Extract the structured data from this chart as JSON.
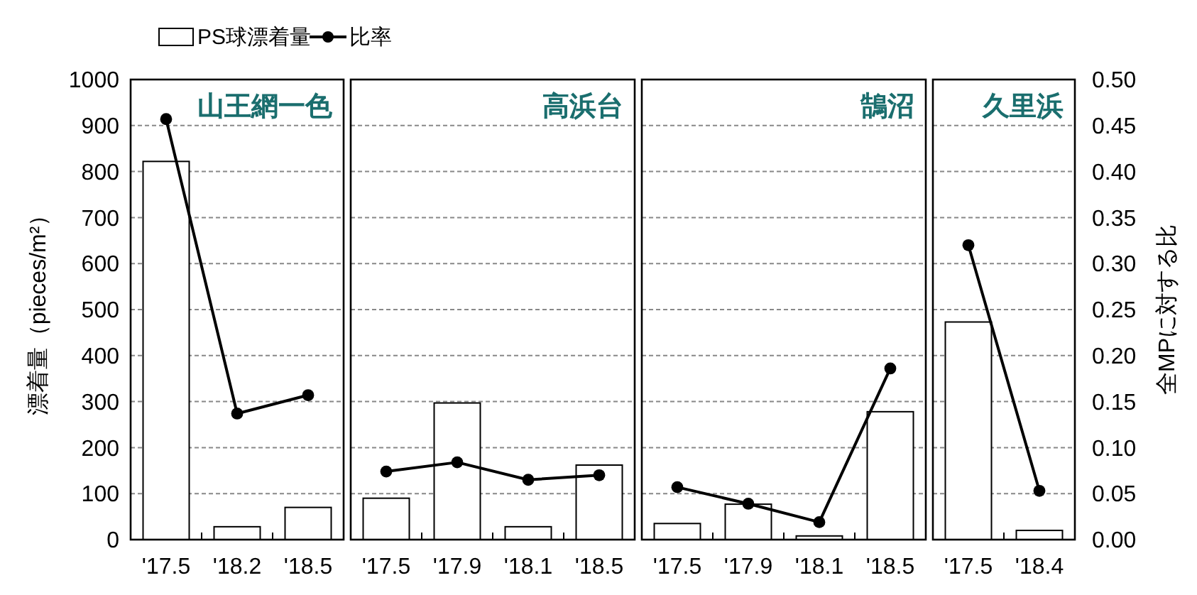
{
  "chart_data": {
    "type": "bar",
    "categories": [
      "'17.5",
      "'18.2",
      "'18.5",
      "'17.5",
      "'17.9",
      "'18.1",
      "'18.5",
      "'17.5",
      "'17.9",
      "'18.1",
      "'18.5",
      "'17.5",
      "'18.4"
    ],
    "series": [
      {
        "name": "PS球漂着量",
        "type": "bar",
        "color": "#ffffff",
        "values": [
          822,
          28,
          70,
          90,
          297,
          28,
          162,
          35,
          77,
          8,
          278,
          473,
          20
        ]
      },
      {
        "name": "比率",
        "type": "line",
        "axis": "y2",
        "color": "#000000",
        "values": [
          0.457,
          0.137,
          0.157,
          null,
          null,
          null,
          null,
          null,
          null,
          null,
          null,
          null,
          null
        ]
      },
      {
        "type": "line",
        "axis": "y2",
        "color": "#000000",
        "values": [
          null,
          null,
          null,
          0.074,
          0.084,
          0.065,
          0.07,
          null,
          null,
          null,
          null,
          null,
          null
        ]
      },
      {
        "type": "line",
        "axis": "y2",
        "color": "#000000",
        "values": [
          null,
          null,
          null,
          null,
          null,
          null,
          null,
          0.057,
          0.039,
          0.019,
          0.186,
          null,
          null
        ]
      },
      {
        "type": "line",
        "axis": "y2",
        "color": "#000000",
        "values": [
          null,
          null,
          null,
          null,
          null,
          null,
          null,
          null,
          null,
          null,
          null,
          0.32,
          0.053
        ]
      }
    ],
    "annotations": [
      "山王網一色",
      "高浜台",
      "鵠沼",
      "久里浜"
    ],
    "ylim": [
      0,
      1000
    ],
    "yticks": [
      0,
      100,
      200,
      300,
      400,
      500,
      600,
      700,
      800,
      900,
      1000
    ],
    "y2lim": [
      0,
      0.5
    ],
    "y2ticks": [
      {
        "value": 0,
        "label": "0.00"
      },
      {
        "value": 0.05,
        "label": "0.05"
      },
      {
        "value": 0.1,
        "label": "0.10"
      },
      {
        "value": 0.15,
        "label": "0.15"
      },
      {
        "value": 0.2,
        "label": "0.20"
      },
      {
        "value": 0.25,
        "label": "0.25"
      },
      {
        "value": 0.3,
        "label": "0.30"
      },
      {
        "value": 0.35,
        "label": "0.35"
      },
      {
        "value": 0.4,
        "label": "0.40"
      },
      {
        "value": 0.45,
        "label": "0.45"
      },
      {
        "value": 0.5,
        "label": "0.50"
      }
    ],
    "ylabel": "漂着量（pieces/m²）",
    "y2label": "全MPに対する比",
    "grid": "y",
    "legend": "top",
    "marker": "circle"
  }
}
